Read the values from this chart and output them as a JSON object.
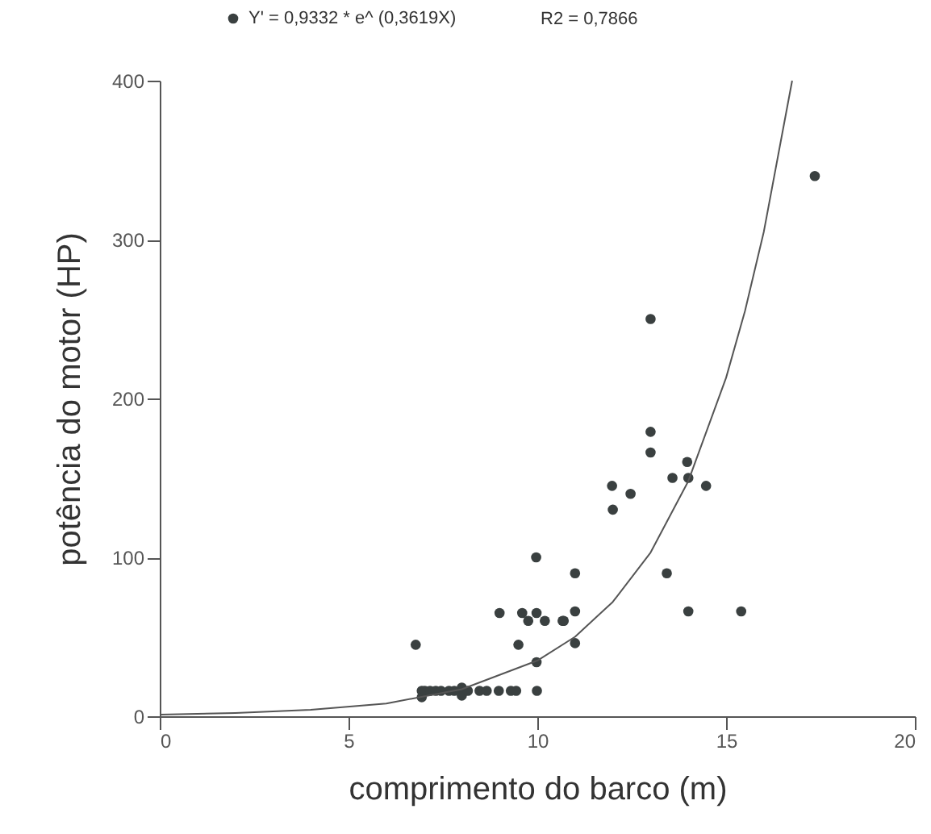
{
  "chart_data": {
    "type": "scatter",
    "xlabel": "comprimento do barco (m)",
    "ylabel": "potência do motor (HP)",
    "xlim": [
      0,
      20
    ],
    "xticks": [
      0,
      5,
      10,
      15,
      20
    ],
    "ylim": [
      0,
      400
    ],
    "yticks": [
      0,
      100,
      200,
      300,
      400
    ],
    "grid": false,
    "legend": "top",
    "annotations": [
      "R2 = 0,7866"
    ],
    "series": [
      {
        "name": "Y' = 0,9332 * e^ (0,3619X)",
        "color": "#3a4040",
        "marker": "circle",
        "x": [
          13,
          13,
          13,
          13.97,
          13.58,
          14,
          14.47,
          11.98,
          12.47,
          12,
          11,
          13.43,
          11,
          10.7,
          14,
          15.4,
          11,
          17.35,
          9.97,
          9,
          9.6,
          9.98,
          9.76,
          10.2,
          10.67,
          6.78,
          9.5,
          9.98,
          6.94,
          8,
          8,
          6.94,
          7.02,
          7.16,
          7.31,
          7.45,
          7.66,
          7.8,
          8.16,
          8.47,
          8.66,
          8.98,
          9.3,
          9.44,
          9.99
        ],
        "values": [
          250,
          179,
          166,
          160,
          150,
          150,
          145,
          145,
          140,
          130,
          90,
          90,
          66,
          60,
          66,
          66,
          46,
          340,
          100,
          65,
          65,
          65,
          60,
          60,
          60,
          45,
          45,
          34,
          16,
          18,
          13,
          12,
          16,
          16,
          16,
          16,
          16,
          16,
          16,
          16,
          16,
          16,
          16,
          16,
          16
        ]
      },
      {
        "color": "#555555",
        "type": "line",
        "marker": "none",
        "x": [
          0,
          2,
          4,
          6,
          8,
          10,
          11,
          12,
          13,
          14,
          15,
          15.5,
          16,
          16.75
        ],
        "values": [
          1,
          2,
          4,
          8,
          17,
          35,
          50,
          72,
          103,
          148,
          213,
          255,
          305,
          400
        ]
      }
    ]
  }
}
